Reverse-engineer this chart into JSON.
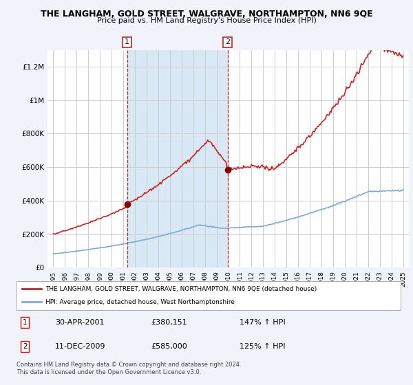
{
  "title": "THE LANGHAM, GOLD STREET, WALGRAVE, NORTHAMPTON, NN6 9QE",
  "subtitle": "Price paid vs. HM Land Registry's House Price Index (HPI)",
  "background_color": "#f0f4fa",
  "plot_bg_color": "#ffffff",
  "hpi_color": "#7aaadd",
  "price_color": "#cc2222",
  "shade_color": "#d8e8f5",
  "sale1_year": 2001.33,
  "sale1_price": 380151,
  "sale2_year": 2009.95,
  "sale2_price": 585000,
  "ylim": [
    0,
    1300000
  ],
  "yticks": [
    0,
    200000,
    400000,
    600000,
    800000,
    1000000,
    1200000
  ],
  "ytick_labels": [
    "£0",
    "£200K",
    "£400K",
    "£600K",
    "£800K",
    "£1M",
    "£1.2M"
  ],
  "xlim_left": 1994.5,
  "xlim_right": 2025.5,
  "legend_line1": "THE LANGHAM, GOLD STREET, WALGRAVE, NORTHAMPTON, NN6 9QE (detached house)",
  "legend_line2": "HPI: Average price, detached house, West Northamptonshire",
  "annotation1_date": "30-APR-2001",
  "annotation1_price": "£380,151",
  "annotation1_hpi": "147% ↑ HPI",
  "annotation2_date": "11-DEC-2009",
  "annotation2_price": "£585,000",
  "annotation2_hpi": "125% ↑ HPI",
  "footer": "Contains HM Land Registry data © Crown copyright and database right 2024.\nThis data is licensed under the Open Government Licence v3.0."
}
